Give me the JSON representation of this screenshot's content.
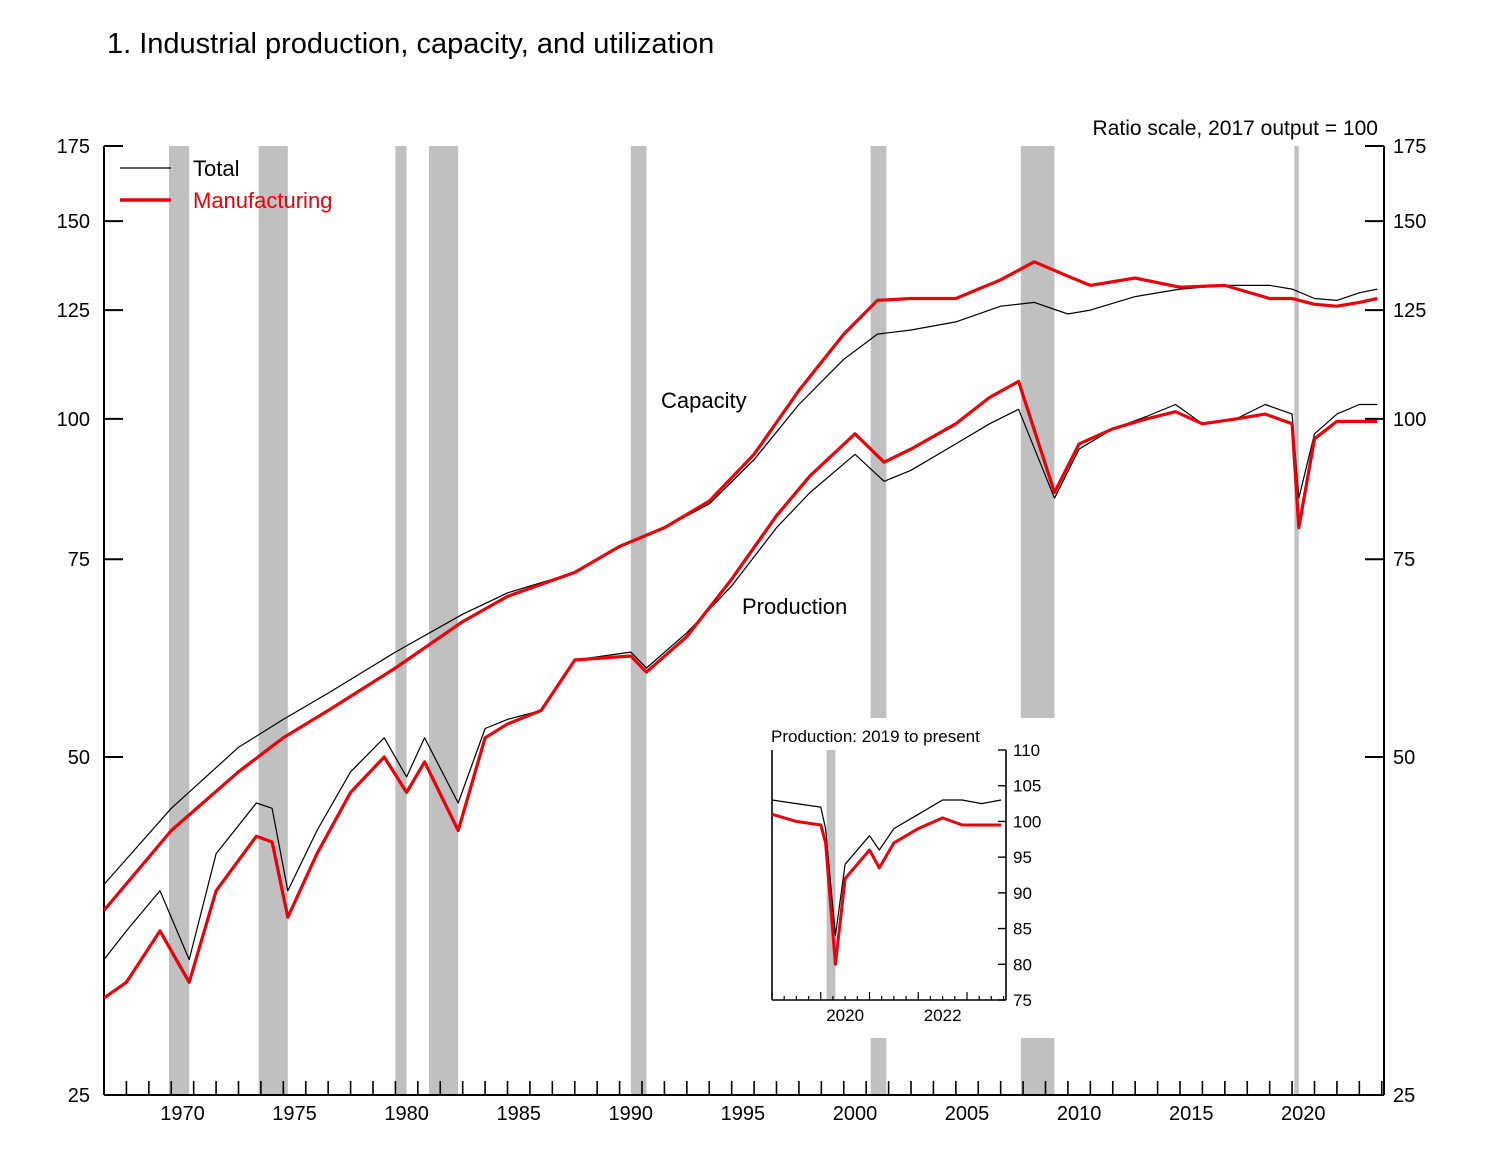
{
  "chart_data": [
    {
      "type": "line",
      "title": "1.  Industrial production, capacity, and utilization",
      "scale_note": "Ratio scale, 2017 output = 100",
      "y_scale": "log",
      "xlim": [
        1967.0,
        2024.1
      ],
      "ylim": [
        25,
        175
      ],
      "x_ticks": [
        1970,
        1975,
        1980,
        1985,
        1990,
        1995,
        2000,
        2005,
        2010,
        2015,
        2020
      ],
      "y_ticks": [
        25,
        50,
        75,
        100,
        125,
        150,
        175
      ],
      "legend": {
        "placement": "top-left",
        "entries": [
          "Total",
          "Manufacturing"
        ]
      },
      "annotations": [
        "Capacity",
        "Production"
      ],
      "recession_shading": [
        [
          1969.9,
          1970.8
        ],
        [
          1973.9,
          1975.2
        ],
        [
          1980.0,
          1980.5
        ],
        [
          1981.5,
          1982.8
        ],
        [
          1990.5,
          1991.2
        ],
        [
          2001.2,
          2001.9
        ],
        [
          2007.9,
          2009.4
        ],
        [
          2020.1,
          2020.3
        ]
      ],
      "colors": {
        "Total": "#000000",
        "Manufacturing": "#e8000b",
        "recession": "#c0c0c0"
      },
      "series": [
        {
          "name": "Total",
          "group": "Capacity",
          "x": [
            1967.0,
            1970.0,
            1973.0,
            1975.0,
            1977.0,
            1980.0,
            1983.0,
            1985.0,
            1988.0,
            1990.0,
            1992.0,
            1994.0,
            1996.0,
            1998.0,
            2000.0,
            2001.5,
            2003.0,
            2005.0,
            2007.0,
            2008.5,
            2010.0,
            2011.0,
            2013.0,
            2015.0,
            2017.0,
            2019.0,
            2020.0,
            2021.0,
            2022.0,
            2023.0,
            2023.8
          ],
          "y": [
            38.5,
            45,
            51,
            54,
            57,
            62,
            67,
            70,
            73,
            77,
            80,
            84,
            92,
            103,
            113,
            119,
            120,
            122,
            126,
            127,
            124,
            125,
            128.5,
            130.5,
            131.5,
            131.5,
            130.5,
            128,
            127.5,
            129.5,
            130.5
          ]
        },
        {
          "name": "Manufacturing",
          "group": "Capacity",
          "x": [
            1967.0,
            1970.0,
            1973.0,
            1975.0,
            1977.0,
            1980.0,
            1983.0,
            1985.0,
            1988.0,
            1990.0,
            1992.0,
            1994.0,
            1996.0,
            1998.0,
            2000.0,
            2001.5,
            2003.0,
            2005.0,
            2007.0,
            2008.5,
            2010.0,
            2011.0,
            2013.0,
            2015.0,
            2017.0,
            2019.0,
            2020.0,
            2021.0,
            2022.0,
            2023.0,
            2023.8
          ],
          "y": [
            36.5,
            43,
            48.5,
            52,
            55,
            60,
            66,
            69.5,
            73,
            77,
            80,
            84.5,
            93,
            106,
            119,
            127.5,
            128,
            128,
            133,
            138,
            134,
            131.5,
            133.5,
            131,
            131.5,
            128,
            128,
            126.5,
            126,
            127,
            128
          ]
        },
        {
          "name": "Total",
          "group": "Production",
          "x": [
            1967.0,
            1968.0,
            1969.5,
            1970.8,
            1972.0,
            1973.8,
            1974.5,
            1975.2,
            1976.5,
            1978.0,
            1979.5,
            1980.5,
            1981.3,
            1982.8,
            1984.0,
            1985.0,
            1986.5,
            1988.0,
            1990.5,
            1991.2,
            1993.0,
            1995.0,
            1997.0,
            1998.5,
            2000.5,
            2001.8,
            2003.0,
            2005.0,
            2006.5,
            2007.8,
            2009.4,
            2010.5,
            2012.0,
            2013.5,
            2014.8,
            2016.0,
            2017.5,
            2018.8,
            2020.0,
            2020.3,
            2021.0,
            2022.0,
            2023.0,
            2023.8
          ],
          "y": [
            33,
            35,
            38,
            33,
            41,
            45.5,
            45,
            38,
            43,
            48.5,
            52,
            48,
            52,
            45.5,
            53,
            54,
            55,
            61,
            62,
            60,
            64.5,
            71,
            80,
            86,
            93,
            88,
            90,
            95,
            99,
            102,
            85,
            94,
            98,
            100.5,
            103,
            99,
            100,
            103,
            101,
            85,
            97,
            101,
            103,
            103
          ]
        },
        {
          "name": "Manufacturing",
          "group": "Production",
          "x": [
            1967.0,
            1968.0,
            1969.5,
            1970.8,
            1972.0,
            1973.8,
            1974.5,
            1975.2,
            1976.5,
            1978.0,
            1979.5,
            1980.5,
            1981.3,
            1982.8,
            1984.0,
            1985.0,
            1986.5,
            1988.0,
            1990.5,
            1991.2,
            1993.0,
            1995.0,
            1997.0,
            1998.5,
            2000.5,
            2001.8,
            2003.0,
            2005.0,
            2006.5,
            2007.8,
            2009.4,
            2010.5,
            2012.0,
            2013.5,
            2014.8,
            2016.0,
            2017.5,
            2018.8,
            2020.0,
            2020.3,
            2021.0,
            2022.0,
            2023.0,
            2023.8
          ],
          "y": [
            30.5,
            31.5,
            35,
            31.5,
            38,
            42.5,
            42,
            36,
            41,
            46.5,
            50,
            46.5,
            49.5,
            43,
            52,
            53.5,
            55,
            61,
            61.5,
            59.5,
            64,
            72,
            82,
            89,
            97,
            91.5,
            94,
            99,
            104.5,
            108,
            86,
            95,
            98,
            100,
            101.5,
            99,
            100,
            101,
            99,
            80,
            96,
            99.5,
            99.5,
            99.5
          ]
        }
      ]
    },
    {
      "type": "line",
      "title": "Production: 2019 to present",
      "xlim": [
        2019.0,
        2023.8
      ],
      "ylim": [
        75,
        110
      ],
      "x_ticks": [
        2020,
        2022
      ],
      "y_ticks": [
        75,
        80,
        85,
        90,
        95,
        100,
        105,
        110
      ],
      "recession_shading": [
        [
          2020.12,
          2020.3
        ]
      ],
      "series": [
        {
          "name": "Total",
          "x": [
            2019.0,
            2019.5,
            2020.0,
            2020.1,
            2020.3,
            2020.5,
            2021.0,
            2021.2,
            2021.5,
            2022.0,
            2022.5,
            2022.9,
            2023.3,
            2023.7
          ],
          "y": [
            103,
            102.5,
            102,
            99,
            84,
            94,
            98,
            96,
            99,
            101,
            103,
            103,
            102.5,
            103
          ]
        },
        {
          "name": "Manufacturing",
          "x": [
            2019.0,
            2019.5,
            2020.0,
            2020.1,
            2020.3,
            2020.5,
            2021.0,
            2021.2,
            2021.5,
            2022.0,
            2022.5,
            2022.9,
            2023.3,
            2023.7
          ],
          "y": [
            101,
            100,
            99.5,
            97,
            80,
            92,
            96,
            93.5,
            97,
            99,
            100.5,
            99.5,
            99.5,
            99.5
          ]
        }
      ]
    }
  ]
}
